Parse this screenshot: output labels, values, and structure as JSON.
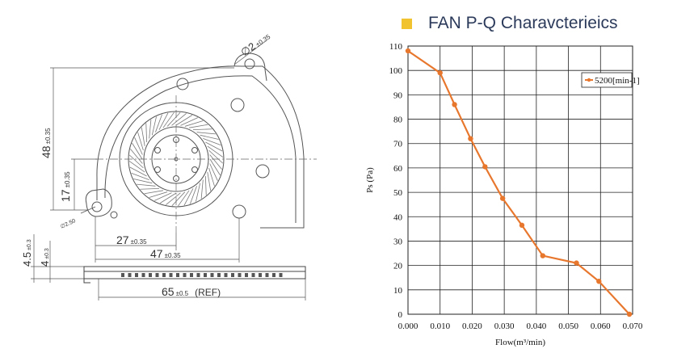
{
  "drawing": {
    "hole_dim": "∅2",
    "hole_tol": "±0.35",
    "dim_48": "48",
    "dim_48_tol": "±0.35",
    "dim_17": "17",
    "dim_17_tol": "±0.35",
    "dim_small_hole": "∅2.50",
    "dim_27": "27",
    "dim_27_tol": "±0.35",
    "dim_47": "47",
    "dim_47_tol": "±0.35",
    "dim_65": "65",
    "dim_65_tol": "±0.5",
    "dim_65_ref": "(REF)",
    "dim_45": "4.5",
    "dim_45_tol": "±0.3",
    "dim_4": "4",
    "dim_4_tol": "±0.3"
  },
  "chart_data": {
    "type": "line",
    "title": "FAN P-Q  Charavcterieics",
    "xlabel": "Flow(m³/min)",
    "ylabel": "Ps (Pa)",
    "xlim": [
      0,
      0.07
    ],
    "ylim": [
      0,
      110
    ],
    "xticks": [
      "0.000",
      "0.010",
      "0.020",
      "0.030",
      "0.040",
      "0.050",
      "0.060",
      "0.070"
    ],
    "yticks": [
      "0",
      "10",
      "20",
      "30",
      "40",
      "50",
      "60",
      "70",
      "80",
      "90",
      "100",
      "110"
    ],
    "grid": true,
    "legend_position": "top-right",
    "series": [
      {
        "name": "5200[min-1]",
        "color": "#e8772e",
        "x": [
          0.0,
          0.01,
          0.0145,
          0.0195,
          0.024,
          0.0295,
          0.0355,
          0.042,
          0.0525,
          0.0595,
          0.069
        ],
        "y": [
          108,
          99,
          86,
          72,
          60.5,
          47.5,
          36.5,
          24,
          21,
          13.5,
          0
        ]
      }
    ]
  }
}
